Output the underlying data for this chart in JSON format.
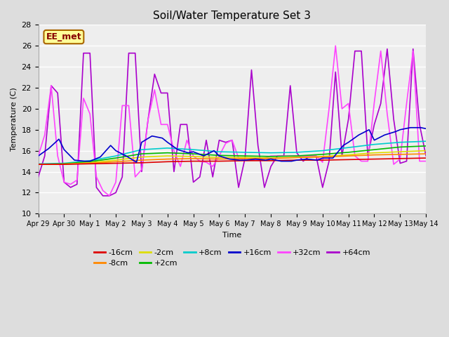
{
  "title": "Soil/Water Temperature Set 3",
  "xlabel": "Time",
  "ylabel": "Temperature (C)",
  "ylim": [
    10,
    28
  ],
  "xlim": [
    0,
    15
  ],
  "yticks": [
    10,
    12,
    14,
    16,
    18,
    20,
    22,
    24,
    26,
    28
  ],
  "x_tick_labels": [
    "Apr 29",
    "Apr 30",
    "May 1",
    "May 2",
    "May 3",
    "May 4",
    "May 5",
    "May 6",
    "May 7",
    "May 8",
    "May 9",
    "May 10",
    "May 11",
    "May 12",
    "May 13",
    "May 14"
  ],
  "series": {
    "-16cm": {
      "color": "#dd0000",
      "zorder": 4,
      "data_x": [
        0,
        1,
        2,
        3,
        4,
        5,
        6,
        7,
        8,
        9,
        10,
        11,
        12,
        13,
        14,
        15
      ],
      "data_y": [
        14.7,
        14.7,
        14.75,
        14.8,
        14.85,
        14.95,
        15.0,
        15.0,
        15.05,
        15.05,
        15.1,
        15.1,
        15.15,
        15.2,
        15.25,
        15.3
      ]
    },
    "-8cm": {
      "color": "#ff8800",
      "zorder": 4,
      "data_x": [
        0,
        1,
        2,
        3,
        4,
        5,
        6,
        7,
        8,
        9,
        10,
        11,
        12,
        13,
        14,
        15
      ],
      "data_y": [
        14.7,
        14.72,
        14.8,
        14.95,
        15.1,
        15.2,
        15.25,
        15.2,
        15.25,
        15.25,
        15.35,
        15.4,
        15.5,
        15.6,
        15.65,
        15.7
      ]
    },
    "-2cm": {
      "color": "#dddd00",
      "zorder": 4,
      "data_x": [
        0,
        1,
        2,
        3,
        4,
        5,
        6,
        7,
        8,
        9,
        10,
        11,
        12,
        13,
        14,
        15
      ],
      "data_y": [
        14.7,
        14.72,
        14.85,
        15.1,
        15.4,
        15.5,
        15.45,
        15.35,
        15.35,
        15.3,
        15.35,
        15.45,
        15.6,
        15.8,
        15.9,
        16.0
      ]
    },
    "+2cm": {
      "color": "#00bb00",
      "zorder": 4,
      "data_x": [
        0,
        1,
        2,
        3,
        4,
        5,
        6,
        7,
        8,
        9,
        10,
        11,
        12,
        13,
        14,
        15
      ],
      "data_y": [
        14.7,
        14.75,
        14.95,
        15.3,
        15.7,
        15.8,
        15.7,
        15.55,
        15.5,
        15.45,
        15.5,
        15.65,
        15.85,
        16.1,
        16.35,
        16.45
      ]
    },
    "+8cm": {
      "color": "#00cccc",
      "zorder": 4,
      "data_x": [
        0,
        1,
        2,
        3,
        4,
        5,
        6,
        7,
        8,
        9,
        10,
        11,
        12,
        13,
        14,
        15
      ],
      "data_y": [
        14.75,
        14.8,
        15.05,
        15.5,
        16.1,
        16.25,
        16.1,
        15.9,
        15.85,
        15.8,
        15.85,
        16.0,
        16.3,
        16.6,
        16.8,
        16.9
      ]
    },
    "+16cm": {
      "color": "#0000cc",
      "zorder": 5,
      "data_x": [
        0,
        0.4,
        0.8,
        1.0,
        1.4,
        1.8,
        2.0,
        2.4,
        2.8,
        3.0,
        3.4,
        3.8,
        4.0,
        4.4,
        4.8,
        5.0,
        5.4,
        5.8,
        6.0,
        6.4,
        6.8,
        7.0,
        7.4,
        7.8,
        8.0,
        8.4,
        8.8,
        9.0,
        9.4,
        9.8,
        10.0,
        10.4,
        10.8,
        11.0,
        11.4,
        11.8,
        12.0,
        12.4,
        12.8,
        13.0,
        13.4,
        13.8,
        14.0,
        14.4,
        14.8,
        15.0
      ],
      "data_y": [
        15.5,
        16.2,
        17.1,
        16.1,
        15.1,
        15.0,
        15.0,
        15.4,
        16.5,
        16.0,
        15.5,
        14.9,
        16.8,
        17.4,
        17.2,
        16.8,
        16.1,
        15.8,
        15.9,
        15.5,
        16.0,
        15.5,
        15.2,
        15.1,
        15.1,
        15.2,
        15.1,
        15.2,
        15.0,
        15.0,
        15.1,
        15.2,
        15.1,
        15.3,
        15.3,
        16.5,
        16.8,
        17.5,
        18.0,
        17.0,
        17.5,
        17.8,
        18.0,
        18.2,
        18.2,
        18.1
      ]
    },
    "+32cm": {
      "color": "#ff44ff",
      "zorder": 3,
      "data_x": [
        0,
        0.25,
        0.5,
        0.75,
        1.0,
        1.25,
        1.5,
        1.75,
        2.0,
        2.25,
        2.5,
        2.75,
        3.0,
        3.25,
        3.5,
        3.75,
        4.0,
        4.25,
        4.5,
        4.75,
        5.0,
        5.25,
        5.5,
        5.75,
        6.0,
        6.25,
        6.5,
        6.75,
        7.0,
        7.25,
        7.5,
        7.75,
        8.0,
        8.25,
        8.5,
        8.75,
        9.0,
        9.25,
        9.5,
        9.75,
        10.0,
        10.25,
        10.5,
        10.75,
        11.0,
        11.25,
        11.5,
        11.75,
        12.0,
        12.25,
        12.5,
        12.75,
        13.0,
        13.25,
        13.5,
        13.75,
        14.0,
        14.25,
        14.5,
        14.75,
        15.0
      ],
      "data_y": [
        15.5,
        17.5,
        22.2,
        15.5,
        13.0,
        12.8,
        13.2,
        21.0,
        19.5,
        13.5,
        12.2,
        11.7,
        13.0,
        20.3,
        20.3,
        13.5,
        14.2,
        19.0,
        21.8,
        18.5,
        18.5,
        16.0,
        14.5,
        17.0,
        15.5,
        15.0,
        14.9,
        14.5,
        15.5,
        16.7,
        17.0,
        15.3,
        15.1,
        15.1,
        15.2,
        15.3,
        15.5,
        15.5,
        15.5,
        15.5,
        15.5,
        15.5,
        15.5,
        15.5,
        14.9,
        20.0,
        26.0,
        20.0,
        20.5,
        15.5,
        15.0,
        15.0,
        20.6,
        25.5,
        19.5,
        14.7,
        15.2,
        20.5,
        25.5,
        15.0,
        15.0
      ]
    },
    "+64cm": {
      "color": "#aa00cc",
      "zorder": 3,
      "data_x": [
        0,
        0.25,
        0.5,
        0.75,
        1.0,
        1.25,
        1.5,
        1.75,
        2.0,
        2.25,
        2.5,
        2.75,
        3.0,
        3.25,
        3.5,
        3.75,
        4.0,
        4.25,
        4.5,
        4.75,
        5.0,
        5.25,
        5.5,
        5.75,
        6.0,
        6.25,
        6.5,
        6.75,
        7.0,
        7.25,
        7.5,
        7.75,
        8.0,
        8.25,
        8.5,
        8.75,
        9.0,
        9.25,
        9.5,
        9.75,
        10.0,
        10.25,
        10.5,
        10.75,
        11.0,
        11.25,
        11.5,
        11.75,
        12.0,
        12.25,
        12.5,
        12.75,
        13.0,
        13.25,
        13.5,
        13.75,
        14.0,
        14.25,
        14.5,
        14.75,
        15.0
      ],
      "data_y": [
        13.5,
        15.5,
        22.2,
        21.5,
        13.0,
        12.5,
        12.8,
        25.3,
        25.3,
        12.5,
        11.7,
        11.7,
        12.0,
        13.5,
        25.3,
        25.3,
        14.0,
        19.0,
        23.3,
        21.5,
        21.5,
        14.0,
        18.5,
        18.5,
        13.0,
        13.5,
        17.0,
        13.5,
        17.0,
        16.8,
        17.0,
        12.5,
        15.3,
        23.7,
        16.5,
        12.5,
        14.5,
        15.5,
        15.5,
        22.2,
        15.8,
        15.0,
        15.5,
        15.5,
        12.5,
        15.0,
        23.5,
        15.5,
        19.0,
        25.5,
        25.5,
        15.5,
        18.5,
        20.5,
        25.7,
        19.0,
        14.8,
        15.0,
        25.7,
        18.5,
        15.5
      ]
    }
  },
  "bg_color": "#dddddd",
  "plot_bg": "#eeeeee",
  "grid_color": "#ffffff",
  "annotation_text": "EE_met",
  "annotation_bg": "#ffff99",
  "annotation_border": "#aa6600",
  "linewidth": 1.2
}
